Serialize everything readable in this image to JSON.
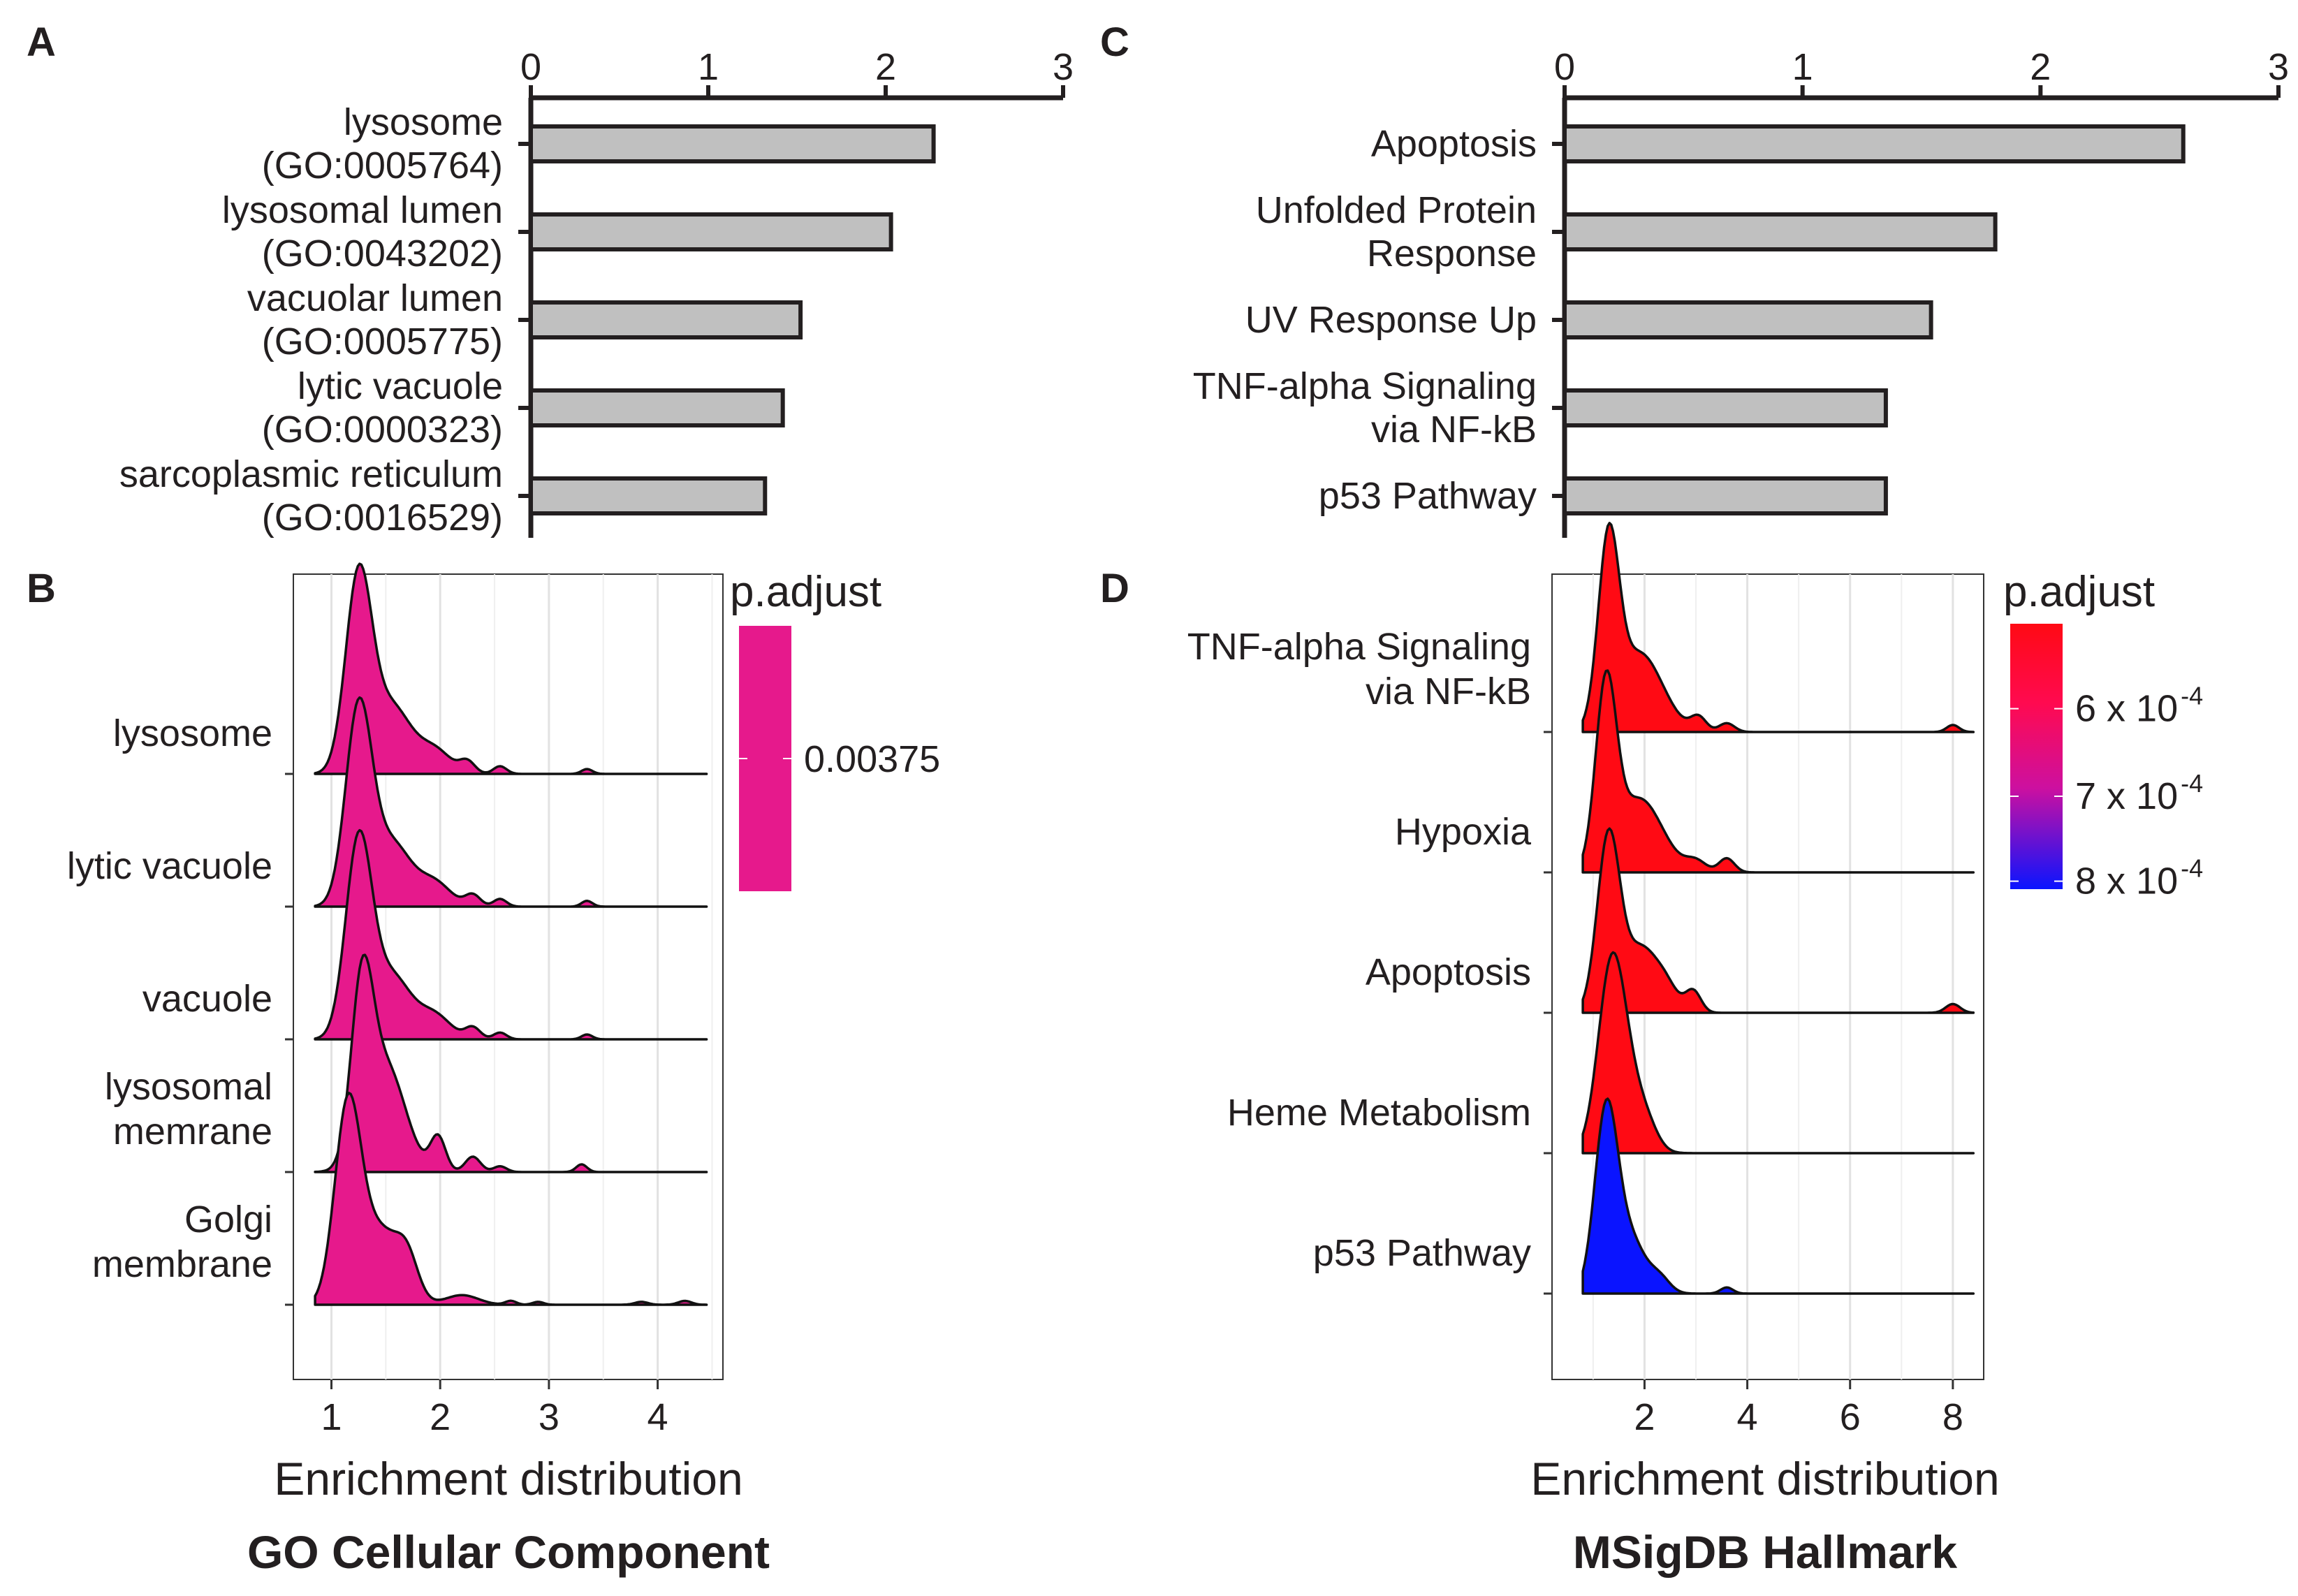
{
  "figure": {
    "panel_labels": [
      "A",
      "B",
      "C",
      "D"
    ],
    "caption_left": "GO Cellular Component",
    "caption_right": "MSigDB Hallmark"
  },
  "colors": {
    "bar_fill": "#c0c0c0",
    "ridge_magenta": "#e6198c",
    "ridge_red": "#ff0a14",
    "ridge_blue": "#0a14ff",
    "grad_top": "#ff0a14",
    "grad_mid": "#cc10a0",
    "grad_bottom": "#0a14ff",
    "ink": "#231f20"
  },
  "chart_data": [
    {
      "panel": "A",
      "type": "bar",
      "orientation": "horizontal",
      "categories": [
        [
          "lysosome",
          "(GO:0005764)"
        ],
        [
          "lysosomal lumen",
          "(GO:0043202)"
        ],
        [
          "vacuolar lumen",
          "(GO:0005775)"
        ],
        [
          "lytic vacuole",
          "(GO:0000323)"
        ],
        [
          "sarcoplasmic reticulum",
          "(GO:0016529)"
        ]
      ],
      "values": [
        2.27,
        2.03,
        1.52,
        1.42,
        1.32
      ],
      "xlim": [
        0,
        3
      ],
      "xticks": [
        0,
        1,
        2,
        3
      ],
      "axis_position": "top"
    },
    {
      "panel": "C",
      "type": "bar",
      "orientation": "horizontal",
      "categories": [
        [
          "Apoptosis"
        ],
        [
          "Unfolded Protein",
          "Response"
        ],
        [
          "UV Response Up"
        ],
        [
          "TNF-alpha Signaling",
          "via NF-kB"
        ],
        [
          "p53 Pathway"
        ]
      ],
      "values": [
        2.6,
        1.81,
        1.54,
        1.35,
        1.35
      ],
      "xlim": [
        0,
        3
      ],
      "xticks": [
        0,
        1,
        2,
        3
      ],
      "axis_position": "top"
    },
    {
      "panel": "B",
      "type": "ridgeline",
      "xlabel": "Enrichment distribution",
      "xlim": [
        0.65,
        4.6
      ],
      "xticks": [
        1,
        2,
        3,
        4
      ],
      "ridge_scale": 1.45,
      "categories": [
        [
          "lysosome"
        ],
        [
          "lytic vacuole"
        ],
        [
          "vacuole"
        ],
        [
          "lysosomal",
          "memrane"
        ],
        [
          "Golgi",
          "membrane"
        ]
      ],
      "padjust_level": [
        0.5,
        0.5,
        0.5,
        0.5,
        0.5
      ],
      "distributions": [
        {
          "start": 0.85,
          "end": 4.45,
          "peaks": [
            [
              1.25,
              1.0,
              0.12
            ],
            [
              1.55,
              0.35,
              0.18
            ],
            [
              1.95,
              0.12,
              0.15
            ],
            [
              2.25,
              0.06,
              0.07
            ],
            [
              2.55,
              0.04,
              0.06
            ],
            [
              3.35,
              0.025,
              0.05
            ]
          ]
        },
        {
          "start": 0.85,
          "end": 4.45,
          "peaks": [
            [
              1.25,
              1.0,
              0.12
            ],
            [
              1.55,
              0.33,
              0.18
            ],
            [
              1.95,
              0.12,
              0.15
            ],
            [
              2.3,
              0.06,
              0.07
            ],
            [
              2.55,
              0.04,
              0.06
            ],
            [
              3.35,
              0.03,
              0.05
            ]
          ]
        },
        {
          "start": 0.85,
          "end": 4.45,
          "peaks": [
            [
              1.25,
              1.0,
              0.12
            ],
            [
              1.55,
              0.33,
              0.18
            ],
            [
              1.95,
              0.12,
              0.15
            ],
            [
              2.3,
              0.06,
              0.07
            ],
            [
              2.55,
              0.035,
              0.06
            ],
            [
              3.35,
              0.025,
              0.05
            ]
          ]
        },
        {
          "start": 0.85,
          "end": 4.45,
          "peaks": [
            [
              1.28,
              0.85,
              0.1
            ],
            [
              1.5,
              0.55,
              0.18
            ],
            [
              1.98,
              0.18,
              0.07
            ],
            [
              2.3,
              0.08,
              0.07
            ],
            [
              2.55,
              0.03,
              0.06
            ],
            [
              3.3,
              0.04,
              0.05
            ]
          ]
        },
        {
          "start": 0.85,
          "end": 4.45,
          "peaks": [
            [
              1.15,
              1.0,
              0.12
            ],
            [
              1.45,
              0.38,
              0.18
            ],
            [
              1.7,
              0.18,
              0.1
            ],
            [
              2.2,
              0.05,
              0.15
            ],
            [
              2.65,
              0.02,
              0.05
            ],
            [
              2.9,
              0.015,
              0.05
            ],
            [
              3.85,
              0.015,
              0.06
            ],
            [
              4.25,
              0.02,
              0.06
            ]
          ]
        }
      ],
      "legend": {
        "title": "p.adjust",
        "ticks": [
          {
            "label": "0.00375",
            "frac": 0.5
          }
        ]
      }
    },
    {
      "panel": "D",
      "type": "ridgeline",
      "xlabel": "Enrichment distribution",
      "xlim": [
        0.2,
        8.6
      ],
      "xticks": [
        2,
        4,
        6,
        8
      ],
      "ridge_scale": 1.25,
      "categories": [
        [
          "TNF-alpha Signaling",
          "via NF-kB"
        ],
        [
          "Hypoxia"
        ],
        [
          "Apoptosis"
        ],
        [
          "Heme Metabolism"
        ],
        [
          "p53 Pathway"
        ]
      ],
      "padjust_level": [
        0.0,
        0.0,
        0.0,
        0.0,
        1.0
      ],
      "distributions": [
        {
          "start": 0.8,
          "end": 8.4,
          "peaks": [
            [
              1.3,
              1.0,
              0.2
            ],
            [
              1.9,
              0.45,
              0.45
            ],
            [
              3.05,
              0.08,
              0.15
            ],
            [
              3.6,
              0.05,
              0.15
            ],
            [
              8.0,
              0.04,
              0.12
            ]
          ]
        },
        {
          "start": 0.8,
          "end": 8.4,
          "peaks": [
            [
              1.25,
              1.0,
              0.2
            ],
            [
              1.9,
              0.42,
              0.45
            ],
            [
              3.0,
              0.06,
              0.2
            ],
            [
              3.6,
              0.08,
              0.15
            ]
          ]
        },
        {
          "start": 0.8,
          "end": 8.4,
          "peaks": [
            [
              1.3,
              1.0,
              0.22
            ],
            [
              1.9,
              0.35,
              0.3
            ],
            [
              2.4,
              0.15,
              0.25
            ],
            [
              2.95,
              0.12,
              0.15
            ],
            [
              8.0,
              0.05,
              0.14
            ]
          ]
        },
        {
          "start": 0.8,
          "end": 8.4,
          "peaks": [
            [
              1.35,
              1.0,
              0.26
            ],
            [
              1.75,
              0.32,
              0.3
            ],
            [
              2.1,
              0.05,
              0.2
            ]
          ]
        },
        {
          "start": 0.8,
          "end": 8.4,
          "peaks": [
            [
              1.25,
              1.0,
              0.22
            ],
            [
              1.7,
              0.32,
              0.3
            ],
            [
              2.3,
              0.08,
              0.2
            ],
            [
              3.6,
              0.035,
              0.12
            ]
          ]
        }
      ],
      "legend": {
        "title": "p.adjust",
        "ticks": [
          {
            "label": "6 x 10",
            "exp": "-4",
            "frac": 0.32
          },
          {
            "label": "7 x 10",
            "exp": "-4",
            "frac": 0.65
          },
          {
            "label": "8 x 10",
            "exp": "-4",
            "frac": 0.97
          }
        ]
      }
    }
  ]
}
